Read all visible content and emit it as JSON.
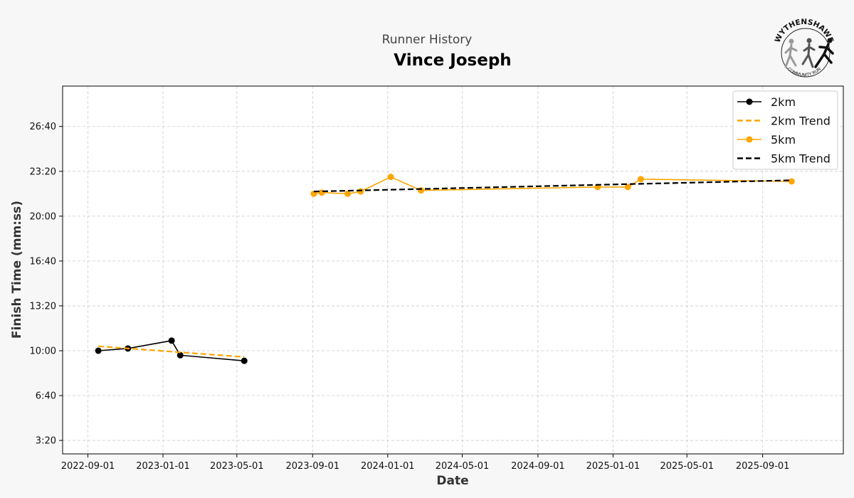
{
  "header": {
    "subtitle": "Runner History",
    "title": "Vince Joseph"
  },
  "logo": {
    "text_top": "WYTHENSHAWE",
    "text_bottom": "COMMUNITY RUN"
  },
  "colors": {
    "series_2km": "#000000",
    "series_5km": "#ffa500",
    "grid": "#cccccc",
    "background": "#f7f7f7",
    "plot_background": "#ffffff"
  },
  "chart_data": {
    "type": "line",
    "title": "Vince Joseph",
    "subtitle": "Runner History",
    "xlabel": "Date",
    "ylabel": "Finish Time (mm:ss)",
    "xlim": [
      "2022-07-22",
      "2026-01-10"
    ],
    "ylim": [
      "02:20",
      "29:40"
    ],
    "x_ticks": [
      "2022-09-01",
      "2023-01-01",
      "2023-05-01",
      "2023-09-01",
      "2024-01-01",
      "2024-05-01",
      "2024-09-01",
      "2025-01-01",
      "2025-05-01",
      "2025-09-01"
    ],
    "y_ticks": [
      "3:20",
      "6:40",
      "10:00",
      "13:20",
      "16:40",
      "20:00",
      "23:20",
      "26:40"
    ],
    "grid": true,
    "legend_position": "top-right",
    "series": [
      {
        "name": "2km",
        "style": "solid-marker",
        "color": "#000000",
        "points": [
          {
            "x": "2022-09-18",
            "y": "10:00"
          },
          {
            "x": "2022-11-05",
            "y": "10:10"
          },
          {
            "x": "2023-01-15",
            "y": "10:45"
          },
          {
            "x": "2023-01-29",
            "y": "09:40"
          },
          {
            "x": "2023-05-13",
            "y": "09:15"
          }
        ]
      },
      {
        "name": "2km Trend",
        "style": "dashed",
        "color": "#ffa500",
        "points": [
          {
            "x": "2022-09-18",
            "y": "10:20"
          },
          {
            "x": "2023-05-13",
            "y": "09:32"
          }
        ]
      },
      {
        "name": "5km",
        "style": "solid-marker",
        "color": "#ffa500",
        "points": [
          {
            "x": "2023-09-03",
            "y": "21:40"
          },
          {
            "x": "2023-09-16",
            "y": "21:45"
          },
          {
            "x": "2023-10-28",
            "y": "21:40"
          },
          {
            "x": "2023-11-18",
            "y": "21:50"
          },
          {
            "x": "2024-01-06",
            "y": "22:55"
          },
          {
            "x": "2024-02-24",
            "y": "21:55"
          },
          {
            "x": "2024-12-07",
            "y": "22:10"
          },
          {
            "x": "2025-01-25",
            "y": "22:10"
          },
          {
            "x": "2025-02-15",
            "y": "22:45"
          },
          {
            "x": "2025-10-18",
            "y": "22:35"
          }
        ]
      },
      {
        "name": "5km Trend",
        "style": "dashed",
        "color": "#000000",
        "points": [
          {
            "x": "2023-09-03",
            "y": "21:50"
          },
          {
            "x": "2025-10-18",
            "y": "22:40"
          }
        ]
      }
    ]
  }
}
